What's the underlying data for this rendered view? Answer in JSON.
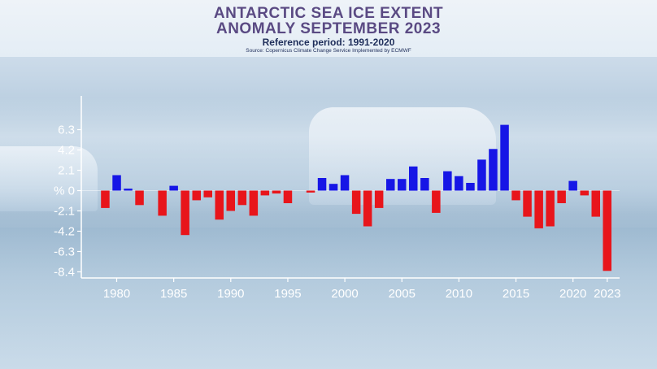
{
  "title_line1": "ANTARCTIC SEA ICE EXTENT",
  "title_line2": "ANOMALY SEPTEMBER 2023",
  "subtitle": "Reference period: 1991-2020",
  "source": "Source: Copernicus Climate Change Service Implemented by ECMWF",
  "colors": {
    "positive": "#1616e6",
    "negative": "#e8151b",
    "axis": "#ffffff"
  },
  "chart_data": {
    "type": "bar",
    "title": "ANTARCTIC SEA ICE EXTENT ANOMALY SEPTEMBER 2023",
    "ylabel": "%",
    "xlabel": "",
    "ylim": [
      -8.6,
      9.5
    ],
    "y_ticks": [
      6.3,
      4.2,
      2.1,
      0,
      -2.1,
      -4.2,
      -6.3,
      -8.4
    ],
    "y_tick_labels": [
      "6.3",
      "4.2",
      "2.1",
      "%  0",
      "-2.1",
      "-4.2",
      "-6.3",
      "-8.4"
    ],
    "x_tick_labels": [
      "1980",
      "1985",
      "1990",
      "1995",
      "2000",
      "2005",
      "2010",
      "2015",
      "2020",
      "2023"
    ],
    "x_tick_years": [
      1980,
      1985,
      1990,
      1995,
      2000,
      2005,
      2010,
      2015,
      2020,
      2023
    ],
    "years": [
      1979,
      1980,
      1981,
      1982,
      1983,
      1984,
      1985,
      1986,
      1987,
      1988,
      1989,
      1990,
      1991,
      1992,
      1993,
      1994,
      1995,
      1996,
      1997,
      1998,
      1999,
      2000,
      2001,
      2002,
      2003,
      2004,
      2005,
      2006,
      2007,
      2008,
      2009,
      2010,
      2011,
      2012,
      2013,
      2014,
      2015,
      2016,
      2017,
      2018,
      2019,
      2020,
      2021,
      2022,
      2023
    ],
    "values": [
      -1.8,
      1.6,
      0.2,
      -1.5,
      0.0,
      -2.6,
      0.5,
      -4.6,
      -1.0,
      -0.7,
      -3.0,
      -2.1,
      -1.5,
      -2.6,
      -0.5,
      -0.3,
      -1.3,
      0.0,
      -0.2,
      1.3,
      0.7,
      1.6,
      -2.4,
      -3.7,
      -1.8,
      1.2,
      1.2,
      2.5,
      1.3,
      -2.3,
      2.0,
      1.5,
      0.8,
      3.2,
      4.3,
      6.8,
      -1.0,
      -2.7,
      -3.9,
      -3.7,
      -1.3,
      1.0,
      -0.5,
      -2.7,
      -8.3
    ]
  }
}
